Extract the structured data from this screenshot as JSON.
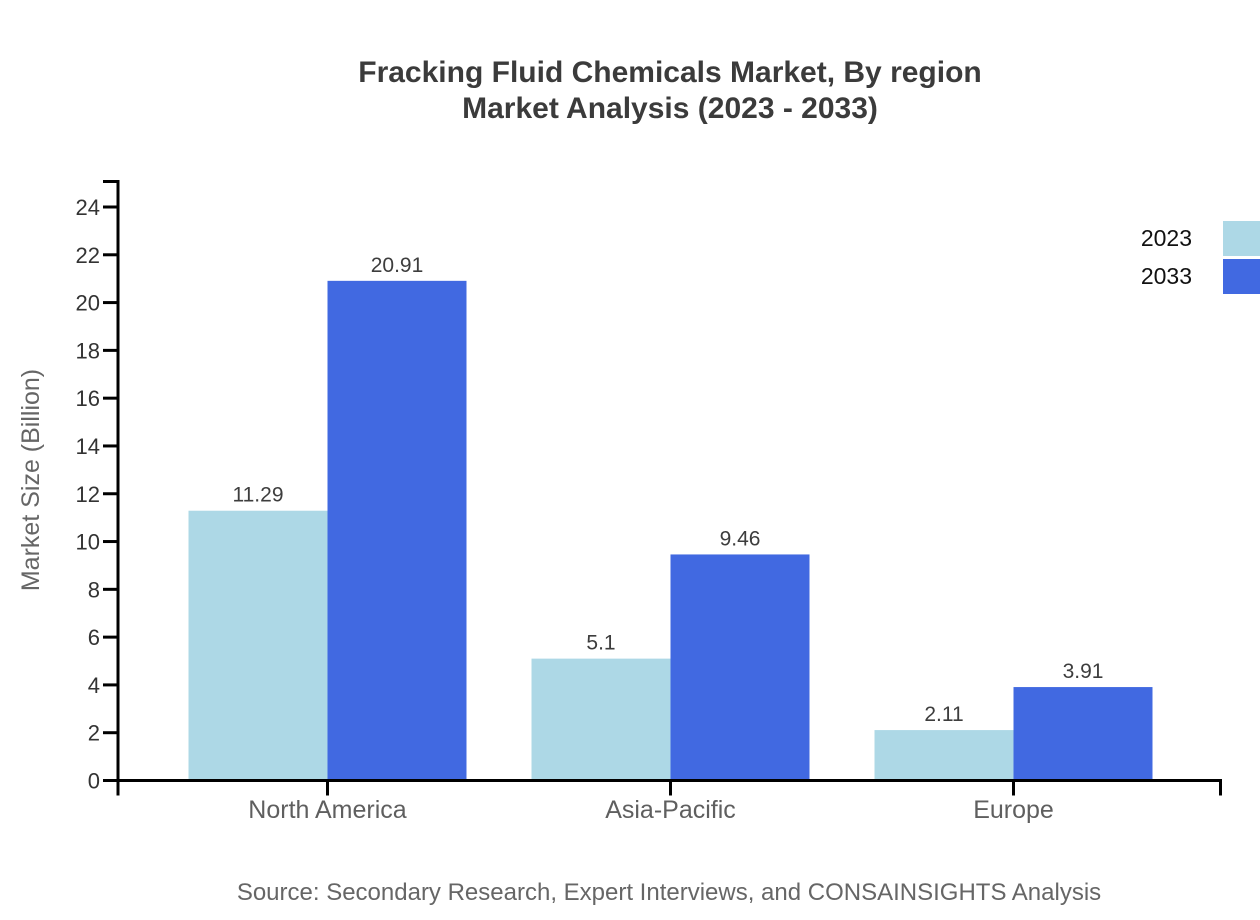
{
  "title": {
    "line1": "Fracking Fluid Chemicals Market, By region",
    "line2": "Market Analysis (2023 - 2033)"
  },
  "source": "Source: Secondary Research, Expert Interviews, and CONSAINSIGHTS Analysis",
  "chart_data": {
    "type": "bar",
    "title": "Fracking Fluid Chemicals Market, By region Market Analysis (2023 - 2033)",
    "categories": [
      "North America",
      "Asia-Pacific",
      "Europe"
    ],
    "series": [
      {
        "name": "2023",
        "color": "#ADD8E6",
        "values": [
          11.29,
          5.1,
          2.11
        ]
      },
      {
        "name": "2033",
        "color": "#4169E1",
        "values": [
          20.91,
          9.46,
          3.91
        ]
      }
    ],
    "value_labels": [
      [
        "11.29",
        "5.1",
        "2.11"
      ],
      [
        "20.91",
        "9.46",
        "3.91"
      ]
    ],
    "xlabel": "",
    "ylabel": "Market Size (Billion)",
    "ylim": [
      0,
      24
    ],
    "ytick_step": 2,
    "yticks": [
      0,
      2,
      4,
      6,
      8,
      10,
      12,
      14,
      16,
      18,
      20,
      22,
      24
    ],
    "grid": false,
    "legend_position": "top-right",
    "bar_gap_within_group": 0
  },
  "colors": {
    "axis": "#000000",
    "title_text": "#3b3b3b",
    "tick_text": "#333333",
    "category_text": "#5f5f5f",
    "muted_text": "#666666",
    "legend_text": "#111111",
    "background": "#ffffff",
    "series_2023": "#ADD8E6",
    "series_2033": "#4169E1"
  }
}
